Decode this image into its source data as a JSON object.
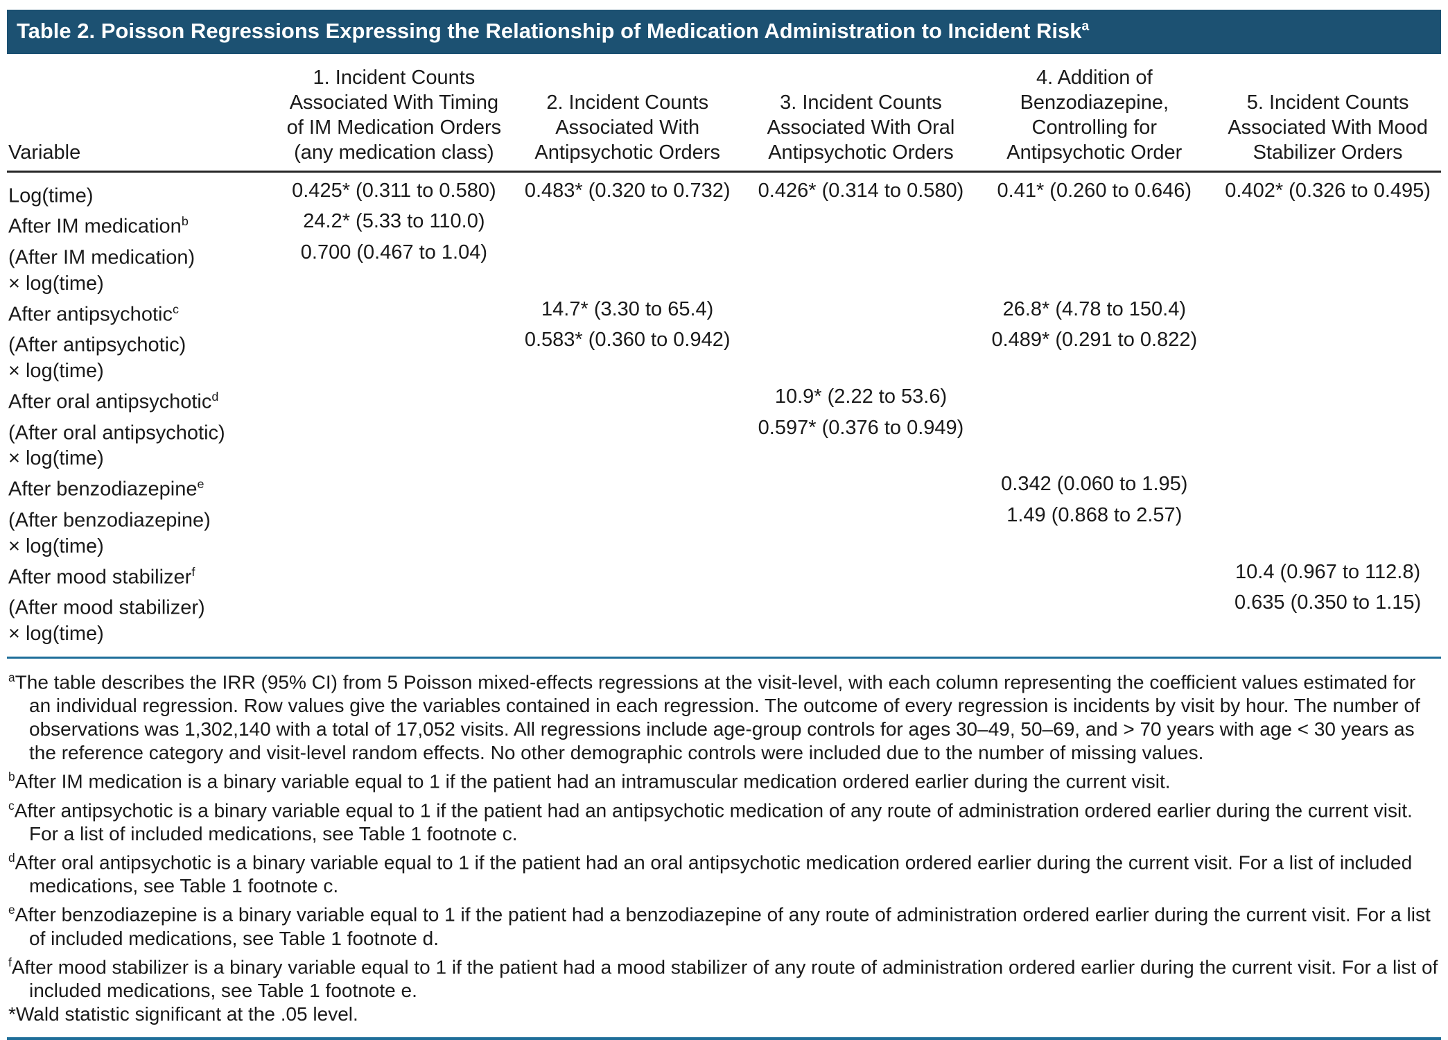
{
  "title": "Table 2. Poisson Regressions Expressing the Relationship of Medication Administration to Incident Risk",
  "title_sup": "a",
  "table": {
    "variable_header": "Variable",
    "column_headers": [
      "1. Incident Counts Associated With Timing of IM Medication Orders (any medication class)",
      "2. Incident Counts Associated With Antipsychotic Orders",
      "3. Incident Counts Associated With Oral Antipsychotic Orders",
      "4. Addition of Benzodiazepine, Controlling for Antipsychotic Order",
      "5. Incident Counts Associated With Mood Stabilizer Orders"
    ],
    "rows": [
      {
        "label": "Log(time)",
        "sup": "",
        "label2": "",
        "values": [
          "0.425* (0.311 to 0.580)",
          "0.483* (0.320 to 0.732)",
          "0.426* (0.314 to 0.580)",
          "0.41* (0.260 to 0.646)",
          "0.402* (0.326 to 0.495)"
        ]
      },
      {
        "label": "After IM medication",
        "sup": "b",
        "label2": "",
        "values": [
          "24.2* (5.33 to 110.0)",
          "",
          "",
          "",
          ""
        ]
      },
      {
        "label": "(After IM medication)",
        "sup": "",
        "label2": "× log(time)",
        "values": [
          "0.700 (0.467 to 1.04)",
          "",
          "",
          "",
          ""
        ]
      },
      {
        "label": "After antipsychotic",
        "sup": "c",
        "label2": "",
        "values": [
          "",
          "14.7* (3.30 to 65.4)",
          "",
          "26.8* (4.78 to 150.4)",
          ""
        ]
      },
      {
        "label": "(After antipsychotic)",
        "sup": "",
        "label2": "× log(time)",
        "values": [
          "",
          "0.583* (0.360 to 0.942)",
          "",
          "0.489* (0.291 to 0.822)",
          ""
        ]
      },
      {
        "label": "After oral antipsychotic",
        "sup": "d",
        "label2": "",
        "values": [
          "",
          "",
          "10.9* (2.22 to 53.6)",
          "",
          ""
        ]
      },
      {
        "label": "(After oral antipsychotic)",
        "sup": "",
        "label2": "× log(time)",
        "values": [
          "",
          "",
          "0.597* (0.376 to 0.949)",
          "",
          ""
        ]
      },
      {
        "label": "After benzodiazepine",
        "sup": "e",
        "label2": "",
        "values": [
          "",
          "",
          "",
          "0.342 (0.060 to 1.95)",
          ""
        ]
      },
      {
        "label": "(After benzodiazepine)",
        "sup": "",
        "label2": "× log(time)",
        "values": [
          "",
          "",
          "",
          "1.49 (0.868 to 2.57)",
          ""
        ]
      },
      {
        "label": "After mood stabilizer",
        "sup": "f",
        "label2": "",
        "values": [
          "",
          "",
          "",
          "",
          "10.4 (0.967 to 112.8)"
        ]
      },
      {
        "label": "(After mood stabilizer)",
        "sup": "",
        "label2": "× log(time)",
        "values": [
          "",
          "",
          "",
          "",
          "0.635 (0.350 to 1.15)"
        ]
      }
    ]
  },
  "footnotes": [
    {
      "marker": "a",
      "text": "The table describes the IRR (95% CI) from 5 Poisson mixed-effects regressions at the visit-level, with each column representing the coefficient values estimated for an individual regression. Row values give the variables contained in each regression. The outcome of every regression is incidents by visit by hour. The number of observations was 1,302,140 with a total of 17,052 visits. All regressions include age-group controls for ages 30–49, 50–69, and > 70 years with age < 30 years as the reference category and visit-level random effects. No other demographic controls were included due to the number of missing values."
    },
    {
      "marker": "b",
      "text": "After IM medication is a binary variable equal to 1 if the patient had an intramuscular medication ordered earlier during the current visit."
    },
    {
      "marker": "c",
      "text": "After antipsychotic is a binary variable equal to 1 if the patient had an antipsychotic medication of any route of administration ordered earlier during the current visit. For a list of included medications, see Table 1 footnote c."
    },
    {
      "marker": "d",
      "text": "After oral antipsychotic is a binary variable equal to 1 if the patient had an oral antipsychotic medication ordered earlier during the current visit. For a list of included medications, see Table 1 footnote c."
    },
    {
      "marker": "e",
      "text": "After benzodiazepine is a binary variable equal to 1 if the patient had a benzodiazepine of any route of administration ordered earlier during the current visit. For a list of included medications, see Table 1 footnote d."
    },
    {
      "marker": "f",
      "text": "After mood stabilizer is a binary variable equal to 1 if the patient had a mood stabilizer of any route of administration ordered earlier during the current visit. For a list of included medications, see Table 1 footnote e."
    },
    {
      "marker": "*",
      "text": "Wald statistic significant at the .05 level."
    }
  ],
  "colors": {
    "title_bar_background": "#1c5172",
    "title_text": "#ffffff",
    "header_rule": "#262626",
    "blue_rule": "#1e6e99",
    "body_text": "#1a1a1a"
  }
}
